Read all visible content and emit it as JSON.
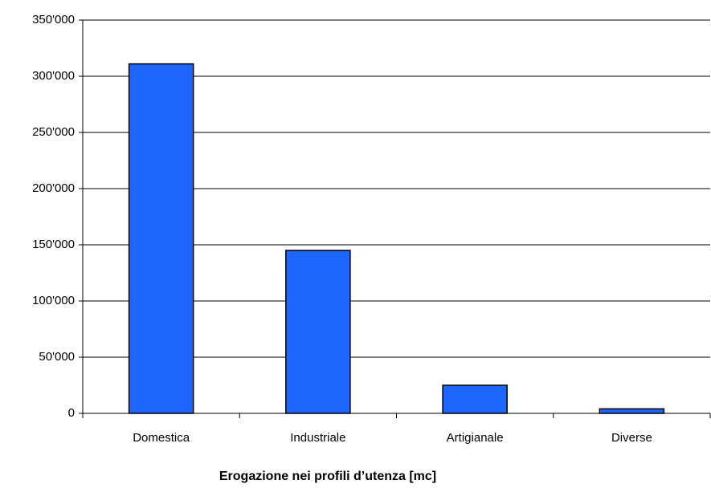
{
  "chart_data": {
    "type": "bar",
    "title": "Erogazione nei profili d’utenza [mc]",
    "categories": [
      "Domestica",
      "Industriale",
      "Artigianale",
      "Diverse"
    ],
    "values": [
      311000,
      145000,
      25000,
      4000
    ],
    "color": "#1f66ff",
    "ylim": [
      0,
      350000
    ],
    "yticks": [
      0,
      {
        "value": 50000,
        "label": "50'000"
      },
      {
        "value": 100000,
        "label": "100'000"
      },
      {
        "value": 150000,
        "label": "150'000"
      },
      {
        "value": 200000,
        "label": "200'000"
      },
      {
        "value": 250000,
        "label": "250'000"
      },
      {
        "value": 300000,
        "label": "300'000"
      },
      {
        "value": 350000,
        "label": "350'000"
      }
    ],
    "grid": true
  }
}
